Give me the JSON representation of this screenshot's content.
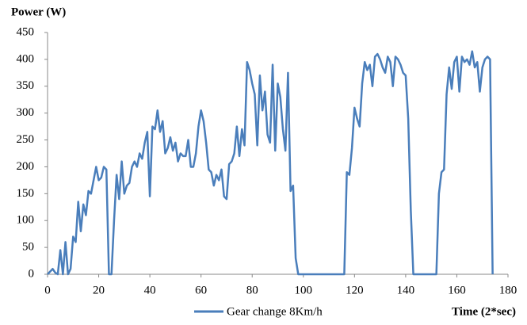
{
  "chart_data": {
    "type": "line",
    "y_label": "Power (W)",
    "x_label": "Time (2*sec)",
    "xlim": [
      0,
      180
    ],
    "xticks": [
      0,
      20,
      40,
      60,
      80,
      100,
      120,
      140,
      160,
      180
    ],
    "ylim": [
      0,
      450
    ],
    "yticks": [
      0,
      50,
      100,
      150,
      200,
      250,
      300,
      350,
      400,
      450
    ],
    "grid": false,
    "legend": "bottom",
    "x": [
      0,
      1,
      2,
      3,
      4,
      5,
      6,
      7,
      8,
      9,
      10,
      11,
      12,
      13,
      14,
      15,
      16,
      17,
      18,
      19,
      20,
      21,
      22,
      23,
      24,
      25,
      26,
      27,
      28,
      29,
      30,
      31,
      32,
      33,
      34,
      35,
      36,
      37,
      38,
      39,
      40,
      41,
      42,
      43,
      44,
      45,
      46,
      47,
      48,
      49,
      50,
      51,
      52,
      53,
      54,
      55,
      56,
      57,
      58,
      59,
      60,
      61,
      62,
      63,
      64,
      65,
      66,
      67,
      68,
      69,
      70,
      71,
      72,
      73,
      74,
      75,
      76,
      77,
      78,
      79,
      80,
      81,
      82,
      83,
      84,
      85,
      86,
      87,
      88,
      89,
      90,
      91,
      92,
      93,
      94,
      95,
      96,
      97,
      98,
      116,
      117,
      118,
      119,
      120,
      121,
      122,
      123,
      124,
      125,
      126,
      127,
      128,
      129,
      130,
      131,
      132,
      133,
      134,
      135,
      136,
      137,
      138,
      139,
      140,
      141,
      142,
      143,
      152,
      153,
      154,
      155,
      156,
      157,
      158,
      159,
      160,
      161,
      162,
      163,
      164,
      165,
      166,
      167,
      168,
      169,
      170,
      171,
      172,
      173,
      174
    ],
    "series": [
      {
        "name": "Gear change 8Km/h",
        "color": "#4a7ebb",
        "values": [
          0,
          5,
          10,
          3,
          0,
          45,
          0,
          60,
          0,
          10,
          70,
          60,
          135,
          80,
          130,
          110,
          155,
          150,
          175,
          200,
          175,
          180,
          200,
          195,
          0,
          0,
          100,
          185,
          140,
          210,
          150,
          165,
          170,
          200,
          210,
          200,
          225,
          215,
          245,
          265,
          145,
          275,
          270,
          305,
          265,
          285,
          225,
          235,
          255,
          230,
          245,
          210,
          225,
          220,
          220,
          250,
          200,
          200,
          225,
          275,
          305,
          285,
          245,
          195,
          190,
          165,
          185,
          175,
          195,
          145,
          140,
          205,
          210,
          225,
          275,
          220,
          270,
          240,
          395,
          380,
          355,
          335,
          240,
          370,
          305,
          340,
          260,
          245,
          390,
          230,
          355,
          330,
          270,
          230,
          375,
          155,
          165,
          30,
          0,
          0,
          190,
          185,
          235,
          310,
          290,
          275,
          355,
          395,
          380,
          390,
          350,
          405,
          410,
          400,
          385,
          375,
          405,
          395,
          350,
          405,
          400,
          390,
          375,
          370,
          290,
          120,
          0,
          0,
          150,
          190,
          195,
          335,
          385,
          345,
          395,
          405,
          340,
          405,
          395,
          400,
          390,
          415,
          385,
          395,
          340,
          385,
          400,
          405,
          400,
          0
        ]
      }
    ]
  }
}
